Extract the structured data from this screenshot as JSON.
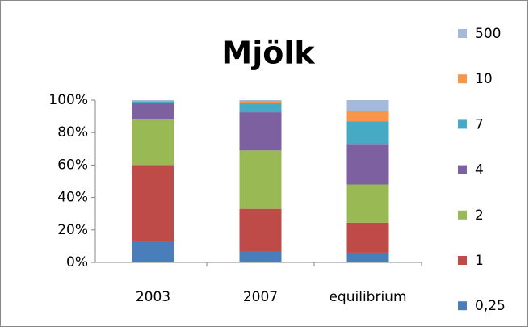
{
  "chart_data": {
    "type": "stacked_bar_percent",
    "title": "Mjölk",
    "categories": [
      "2003",
      "2007",
      "equilibrium"
    ],
    "series": [
      {
        "name": "0,25",
        "color": "#4a7ebb",
        "values": [
          13,
          6.5,
          6
        ]
      },
      {
        "name": "1",
        "color": "#be4b48",
        "values": [
          47,
          26.5,
          18.5
        ]
      },
      {
        "name": "2",
        "color": "#98b954",
        "values": [
          28,
          36,
          23.5
        ]
      },
      {
        "name": "4",
        "color": "#7d60a0",
        "values": [
          10,
          23.5,
          25
        ]
      },
      {
        "name": "7",
        "color": "#46aac5",
        "values": [
          1,
          5.5,
          14
        ]
      },
      {
        "name": "10",
        "color": "#f79646",
        "values": [
          0.5,
          1.5,
          6.5
        ]
      },
      {
        "name": "500",
        "color": "#a5b9db",
        "values": [
          0.5,
          0.5,
          6.5
        ]
      }
    ],
    "ylim": [
      0,
      100
    ],
    "yticks": [
      {
        "value": 0,
        "label": "0%"
      },
      {
        "value": 20,
        "label": "20%"
      },
      {
        "value": 40,
        "label": "40%"
      },
      {
        "value": 60,
        "label": "60%"
      },
      {
        "value": 80,
        "label": "80%"
      },
      {
        "value": 100,
        "label": "100%"
      }
    ],
    "legend": "right"
  }
}
